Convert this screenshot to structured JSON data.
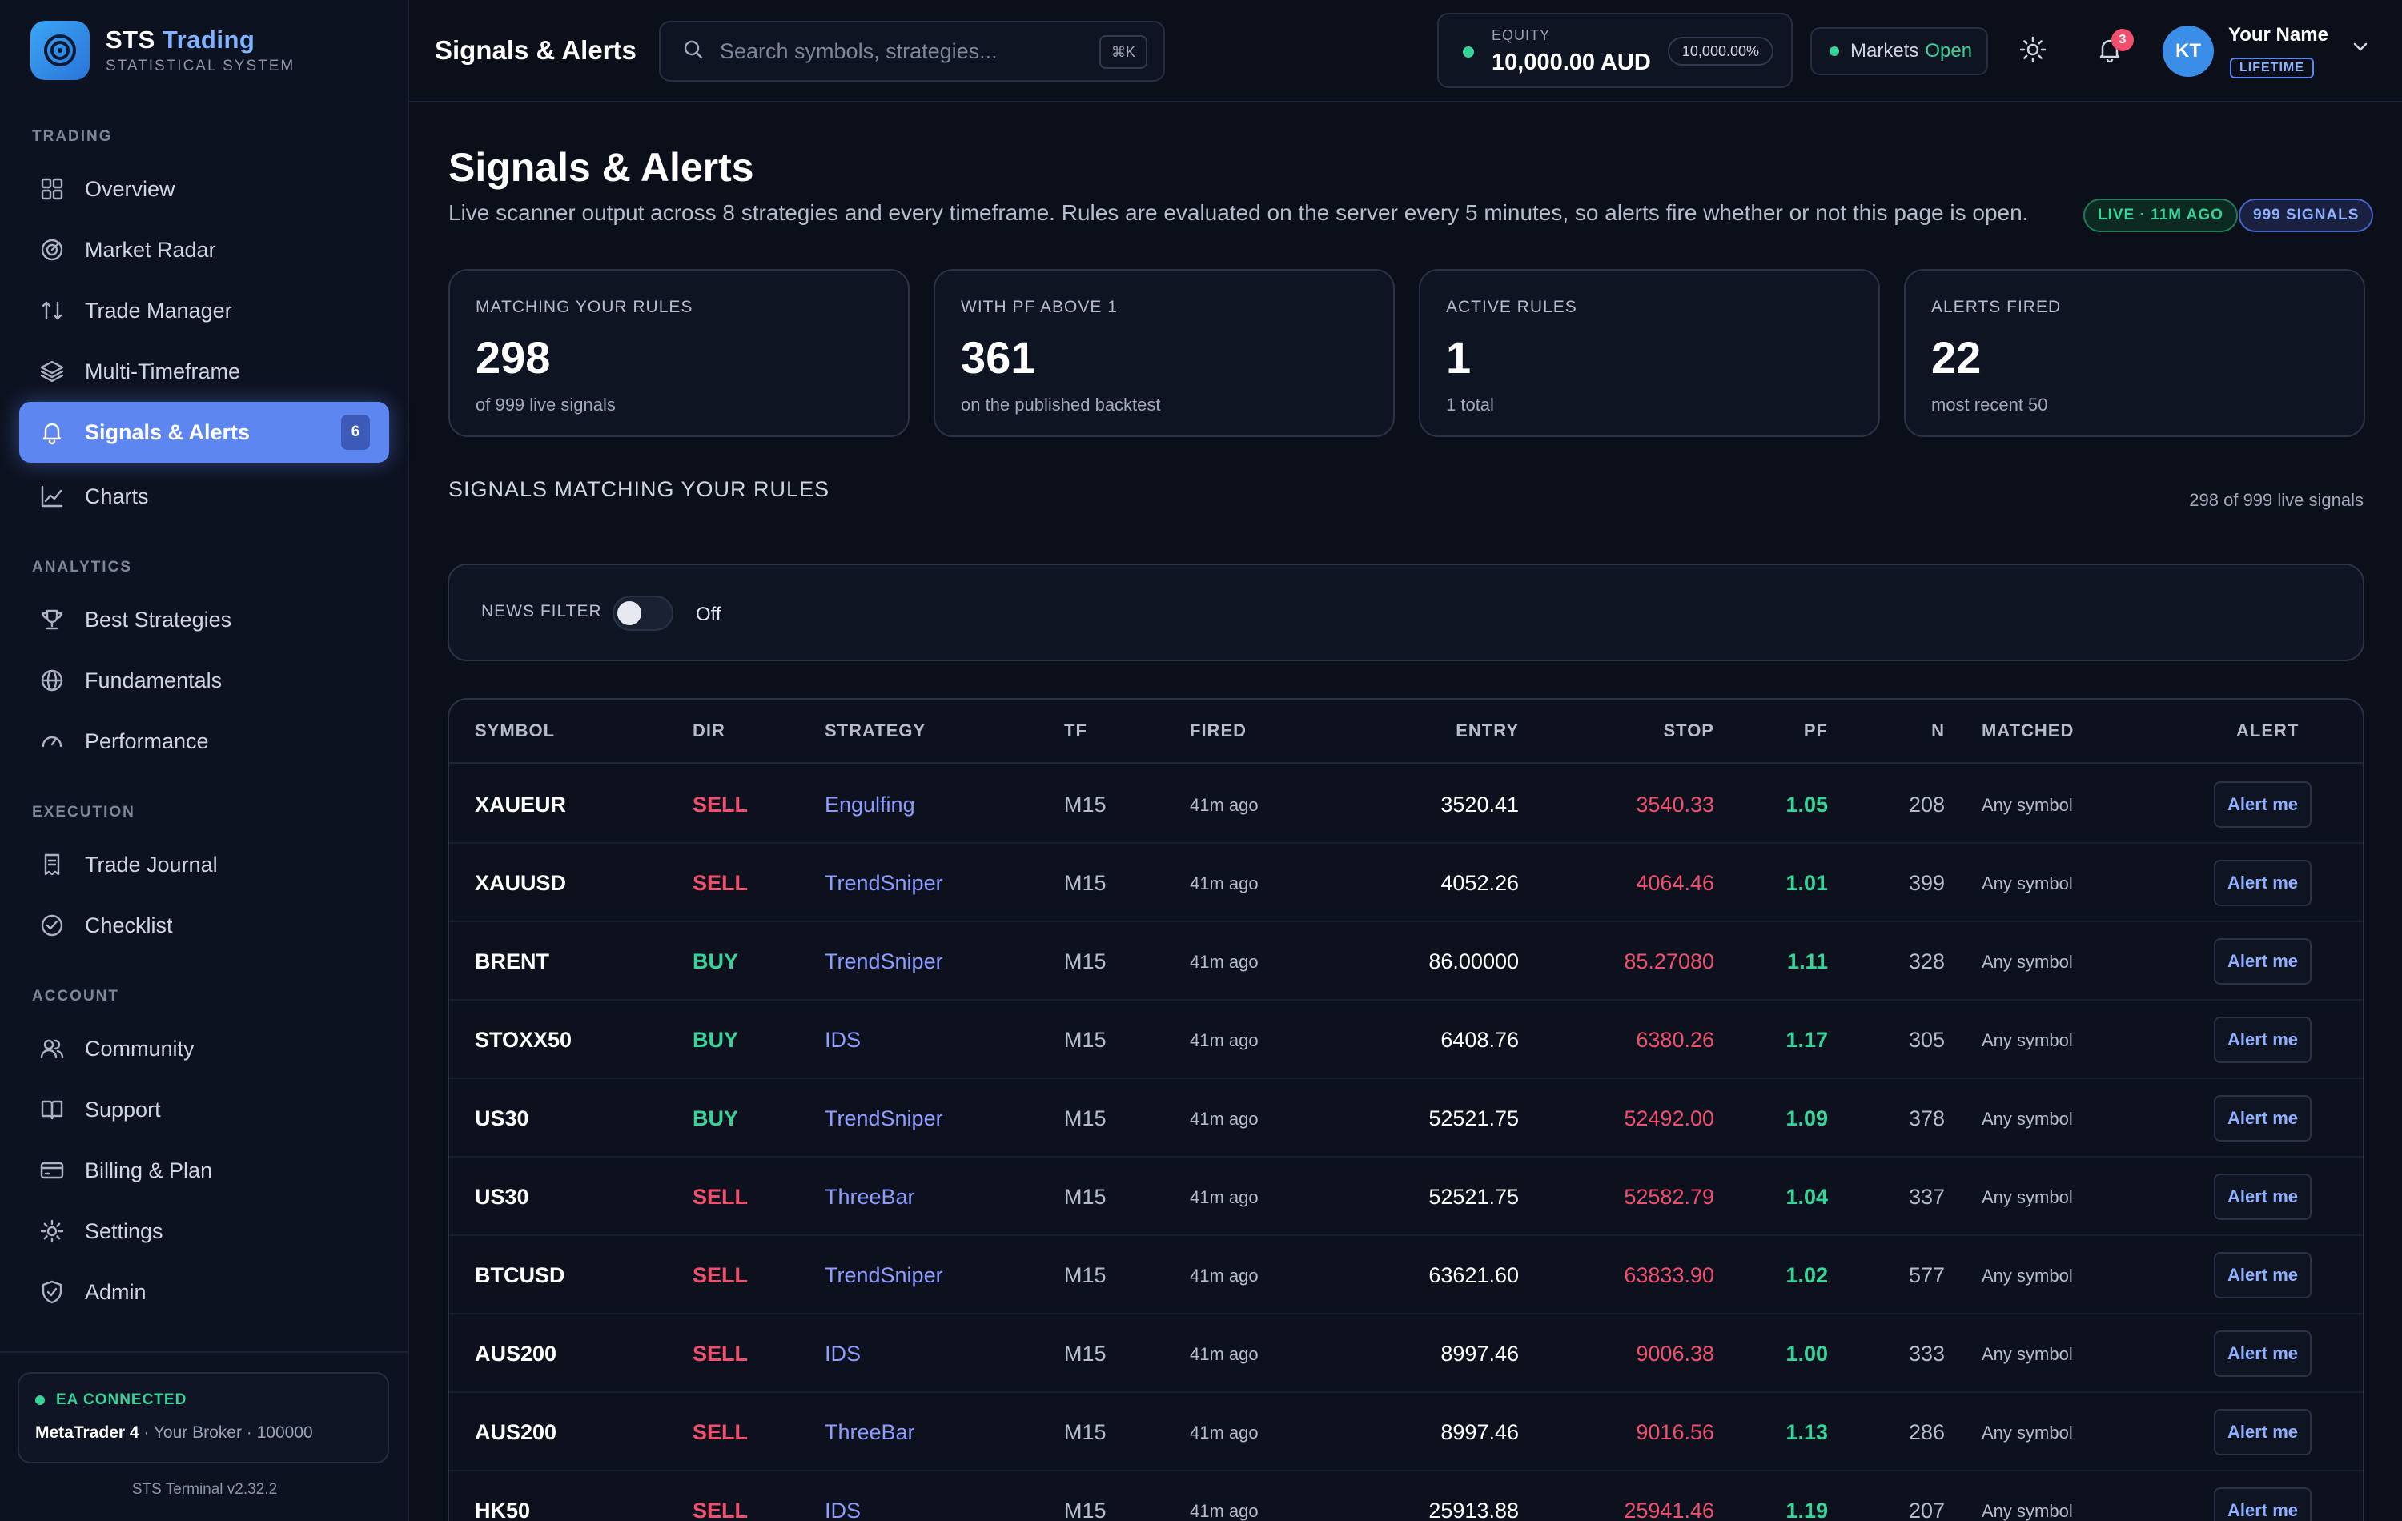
{
  "brand": {
    "name_main": "STS ",
    "name_accent": "Trading",
    "subtitle": "STATISTICAL SYSTEM"
  },
  "sidebar": {
    "sections": [
      {
        "label": "TRADING",
        "items": [
          {
            "label": "Overview",
            "icon": "grid-icon"
          },
          {
            "label": "Market Radar",
            "icon": "radar-icon"
          },
          {
            "label": "Trade Manager",
            "icon": "arrows-icon"
          },
          {
            "label": "Multi-Timeframe",
            "icon": "layers-icon"
          },
          {
            "label": "Signals & Alerts",
            "icon": "bell-icon",
            "active": true,
            "badge": "6"
          },
          {
            "label": "Charts",
            "icon": "line-chart-icon"
          }
        ]
      },
      {
        "label": "ANALYTICS",
        "items": [
          {
            "label": "Best Strategies",
            "icon": "trophy-icon"
          },
          {
            "label": "Fundamentals",
            "icon": "globe-icon"
          },
          {
            "label": "Performance",
            "icon": "gauge-icon"
          }
        ]
      },
      {
        "label": "EXECUTION",
        "items": [
          {
            "label": "Trade Journal",
            "icon": "receipt-icon"
          },
          {
            "label": "Checklist",
            "icon": "check-circle-icon"
          }
        ]
      },
      {
        "label": "ACCOUNT",
        "items": [
          {
            "label": "Community",
            "icon": "users-icon"
          },
          {
            "label": "Support",
            "icon": "book-icon"
          },
          {
            "label": "Billing & Plan",
            "icon": "card-icon"
          },
          {
            "label": "Settings",
            "icon": "gear-icon"
          },
          {
            "label": "Admin",
            "icon": "shield-icon"
          }
        ]
      }
    ],
    "ea": {
      "status": "EA CONNECTED",
      "platform": "MetaTrader 4",
      "details": " · Your Broker · 100000"
    },
    "version": "STS Terminal v2.32.2"
  },
  "topbar": {
    "title": "Signals & Alerts",
    "search_placeholder": "Search symbols, strategies...",
    "search_shortcut": "⌘K",
    "equity_label": "EQUITY",
    "equity_value": "10,000.00 AUD",
    "equity_pct": "10,000.00%",
    "market_label": "Markets",
    "market_state": "Open",
    "notifications": "3",
    "user_initials": "KT",
    "user_name": "Your Name",
    "user_plan": "LIFETIME"
  },
  "page": {
    "title": "Signals & Alerts",
    "description": "Live scanner output across 8 strategies and every timeframe. Rules are evaluated on the server every 5 minutes, so alerts fire whether or not this page is open.",
    "live_pill": "LIVE · 11M AGO",
    "signals_pill": "999 SIGNALS"
  },
  "stats": [
    {
      "label": "MATCHING YOUR RULES",
      "value": "298",
      "sub": "of 999 live signals"
    },
    {
      "label": "WITH PF ABOVE 1",
      "value": "361",
      "sub": "on the published backtest"
    },
    {
      "label": "ACTIVE RULES",
      "value": "1",
      "sub": "1 total"
    },
    {
      "label": "ALERTS FIRED",
      "value": "22",
      "sub": "most recent 50"
    }
  ],
  "section": {
    "title": "SIGNALS MATCHING YOUR RULES",
    "count": "298 of 999 live signals"
  },
  "filter": {
    "label": "NEWS FILTER",
    "state": "Off"
  },
  "table": {
    "headers": {
      "symbol": "SYMBOL",
      "dir": "DIR",
      "strategy": "STRATEGY",
      "tf": "TF",
      "fired": "FIRED",
      "entry": "ENTRY",
      "stop": "STOP",
      "pf": "PF",
      "n": "N",
      "matched": "MATCHED",
      "alert": "ALERT"
    },
    "alert_label": "Alert me",
    "rows": [
      {
        "symbol": "XAUEUR",
        "dir": "SELL",
        "strategy": "Engulfing",
        "tf": "M15",
        "fired": "41m ago",
        "entry": "3520.41",
        "stop": "3540.33",
        "pf": "1.05",
        "n": "208",
        "matched": "Any symbol"
      },
      {
        "symbol": "XAUUSD",
        "dir": "SELL",
        "strategy": "TrendSniper",
        "tf": "M15",
        "fired": "41m ago",
        "entry": "4052.26",
        "stop": "4064.46",
        "pf": "1.01",
        "n": "399",
        "matched": "Any symbol"
      },
      {
        "symbol": "BRENT",
        "dir": "BUY",
        "strategy": "TrendSniper",
        "tf": "M15",
        "fired": "41m ago",
        "entry": "86.00000",
        "stop": "85.27080",
        "pf": "1.11",
        "n": "328",
        "matched": "Any symbol"
      },
      {
        "symbol": "STOXX50",
        "dir": "BUY",
        "strategy": "IDS",
        "tf": "M15",
        "fired": "41m ago",
        "entry": "6408.76",
        "stop": "6380.26",
        "pf": "1.17",
        "n": "305",
        "matched": "Any symbol"
      },
      {
        "symbol": "US30",
        "dir": "BUY",
        "strategy": "TrendSniper",
        "tf": "M15",
        "fired": "41m ago",
        "entry": "52521.75",
        "stop": "52492.00",
        "pf": "1.09",
        "n": "378",
        "matched": "Any symbol"
      },
      {
        "symbol": "US30",
        "dir": "SELL",
        "strategy": "ThreeBar",
        "tf": "M15",
        "fired": "41m ago",
        "entry": "52521.75",
        "stop": "52582.79",
        "pf": "1.04",
        "n": "337",
        "matched": "Any symbol"
      },
      {
        "symbol": "BTCUSD",
        "dir": "SELL",
        "strategy": "TrendSniper",
        "tf": "M15",
        "fired": "41m ago",
        "entry": "63621.60",
        "stop": "63833.90",
        "pf": "1.02",
        "n": "577",
        "matched": "Any symbol"
      },
      {
        "symbol": "AUS200",
        "dir": "SELL",
        "strategy": "IDS",
        "tf": "M15",
        "fired": "41m ago",
        "entry": "8997.46",
        "stop": "9006.38",
        "pf": "1.00",
        "n": "333",
        "matched": "Any symbol"
      },
      {
        "symbol": "AUS200",
        "dir": "SELL",
        "strategy": "ThreeBar",
        "tf": "M15",
        "fired": "41m ago",
        "entry": "8997.46",
        "stop": "9016.56",
        "pf": "1.13",
        "n": "286",
        "matched": "Any symbol"
      },
      {
        "symbol": "HK50",
        "dir": "SELL",
        "strategy": "IDS",
        "tf": "M15",
        "fired": "41m ago",
        "entry": "25913.88",
        "stop": "25941.46",
        "pf": "1.19",
        "n": "207",
        "matched": "Any symbol"
      }
    ]
  },
  "colors": {
    "accent": "#5d86f0",
    "sell": "#f0506e",
    "buy": "#37d49a",
    "strategy": "#8f9cff"
  }
}
